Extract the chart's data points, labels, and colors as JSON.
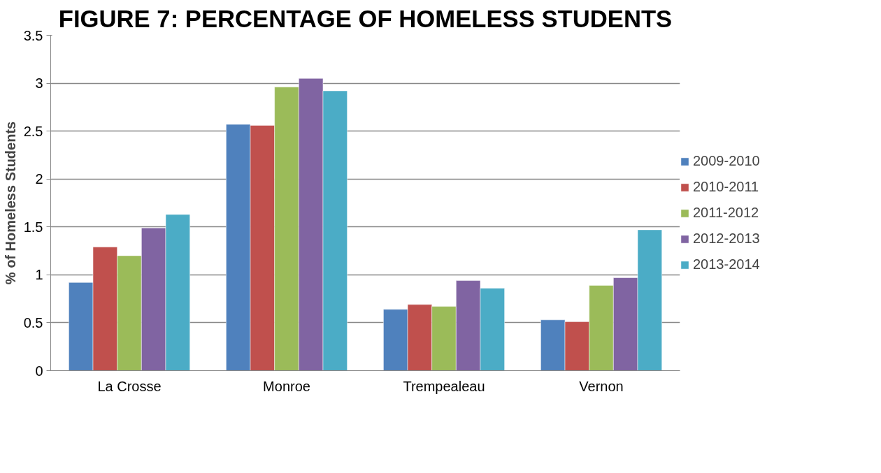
{
  "chart_data": {
    "type": "bar",
    "title": "FIGURE 7: PERCENTAGE OF HOMELESS STUDENTS",
    "ylabel": "% of Homeless Students",
    "categories": [
      "La Crosse",
      "Monroe",
      "Trempealeau",
      "Vernon"
    ],
    "series": [
      {
        "name": "2009-2010",
        "color": "#4f81bd",
        "values": [
          0.92,
          2.57,
          0.64,
          0.53
        ]
      },
      {
        "name": "2010-2011",
        "color": "#c0504d",
        "values": [
          1.29,
          2.56,
          0.69,
          0.51
        ]
      },
      {
        "name": "2011-2012",
        "color": "#9bbb59",
        "values": [
          1.2,
          2.96,
          0.67,
          0.89
        ]
      },
      {
        "name": "2012-2013",
        "color": "#8064a2",
        "values": [
          1.49,
          3.05,
          0.94,
          0.97
        ]
      },
      {
        "name": "2013-2014",
        "color": "#4bacc6",
        "values": [
          1.63,
          2.92,
          0.86,
          1.47
        ]
      }
    ],
    "ylim": [
      0,
      3.5
    ],
    "yticks": [
      0,
      0.5,
      1,
      1.5,
      2,
      2.5,
      3,
      3.5
    ],
    "grid": "y",
    "legend": "right"
  }
}
